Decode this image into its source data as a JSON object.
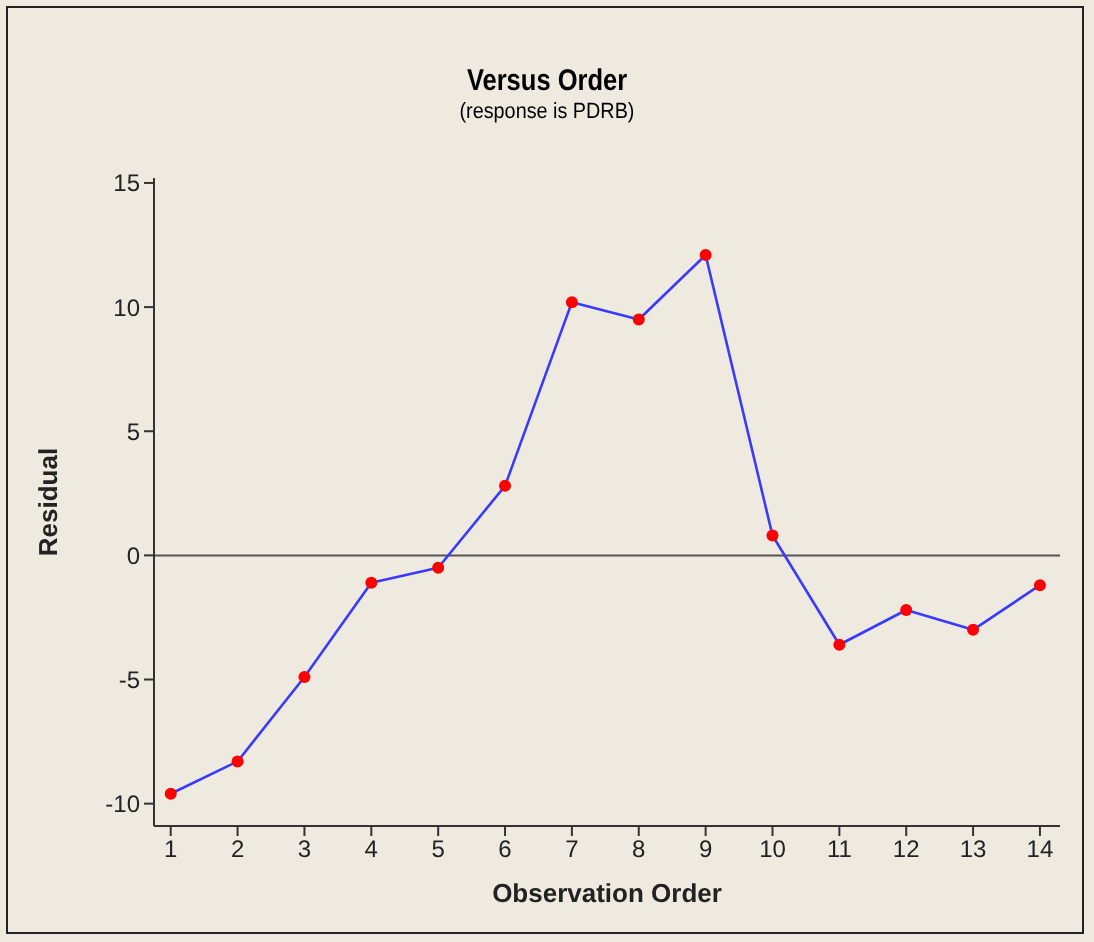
{
  "chart_data": {
    "type": "line",
    "title": "Versus Order",
    "subtitle": "(response is PDRB)",
    "xlabel": "Observation Order",
    "ylabel": "Residual",
    "x": [
      1,
      2,
      3,
      4,
      5,
      6,
      7,
      8,
      9,
      10,
      11,
      12,
      13,
      14
    ],
    "series": [
      {
        "color": "#3a3aff",
        "colors": [
          "#ff0000",
          "#ff0000",
          "#ff0000",
          "#ff0000",
          "#ff0000",
          "#ff0000",
          "#ff0000",
          "#ff0000",
          "#ff0000",
          "#ff0000",
          "#ff0000",
          "#ff0000",
          "#ff0000",
          "#ff0000"
        ],
        "values": [
          -9.6,
          -8.3,
          -4.9,
          -1.1,
          -0.5,
          2.8,
          10.2,
          9.5,
          12.1,
          0.8,
          -3.6,
          -2.2,
          -3.0,
          -1.2
        ]
      }
    ],
    "xlim": [
      0.75,
      14.3
    ],
    "xticks": [
      1,
      2,
      3,
      4,
      5,
      6,
      7,
      8,
      9,
      10,
      11,
      12,
      13,
      14
    ],
    "ylim": [
      -10.9,
      15.2
    ],
    "yticks": [
      -10,
      -5,
      0,
      5,
      10,
      15
    ],
    "ref_lines": [
      {
        "axis": "y",
        "value": 0,
        "color": "#555555"
      }
    ],
    "grid": false,
    "legend": false,
    "marker": "circle",
    "line_style": "solid"
  }
}
